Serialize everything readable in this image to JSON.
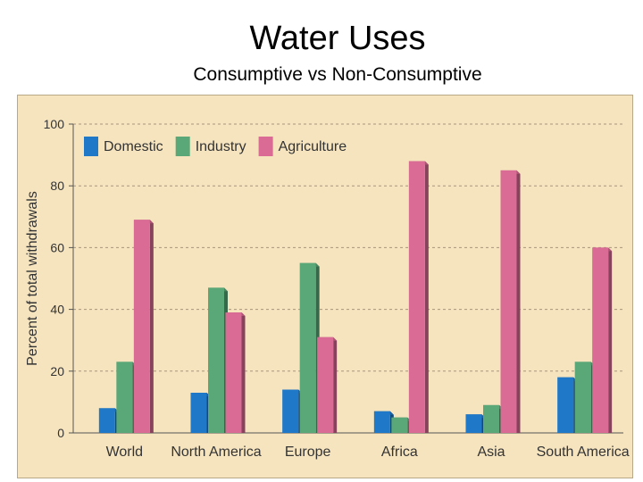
{
  "header": {
    "title": "Water Uses",
    "subtitle": "Consumptive vs Non-Consumptive"
  },
  "chart_data": {
    "type": "bar",
    "ylabel": "Percent of total withdrawals",
    "xlabel": "",
    "ylim": [
      0,
      100
    ],
    "yticks": [
      0,
      20,
      40,
      60,
      80,
      100
    ],
    "grid": true,
    "legend_position": "top-left",
    "categories": [
      "World",
      "North America",
      "Europe",
      "Africa",
      "Asia",
      "South America"
    ],
    "series": [
      {
        "name": "Domestic",
        "color": "#1f78c8",
        "values": [
          8,
          13,
          14,
          7,
          6,
          18
        ]
      },
      {
        "name": "Industry",
        "color": "#5aa878",
        "values": [
          23,
          47,
          55,
          5,
          9,
          23
        ]
      },
      {
        "name": "Agriculture",
        "color": "#d96b94",
        "values": [
          69,
          39,
          31,
          88,
          85,
          60
        ]
      }
    ]
  }
}
